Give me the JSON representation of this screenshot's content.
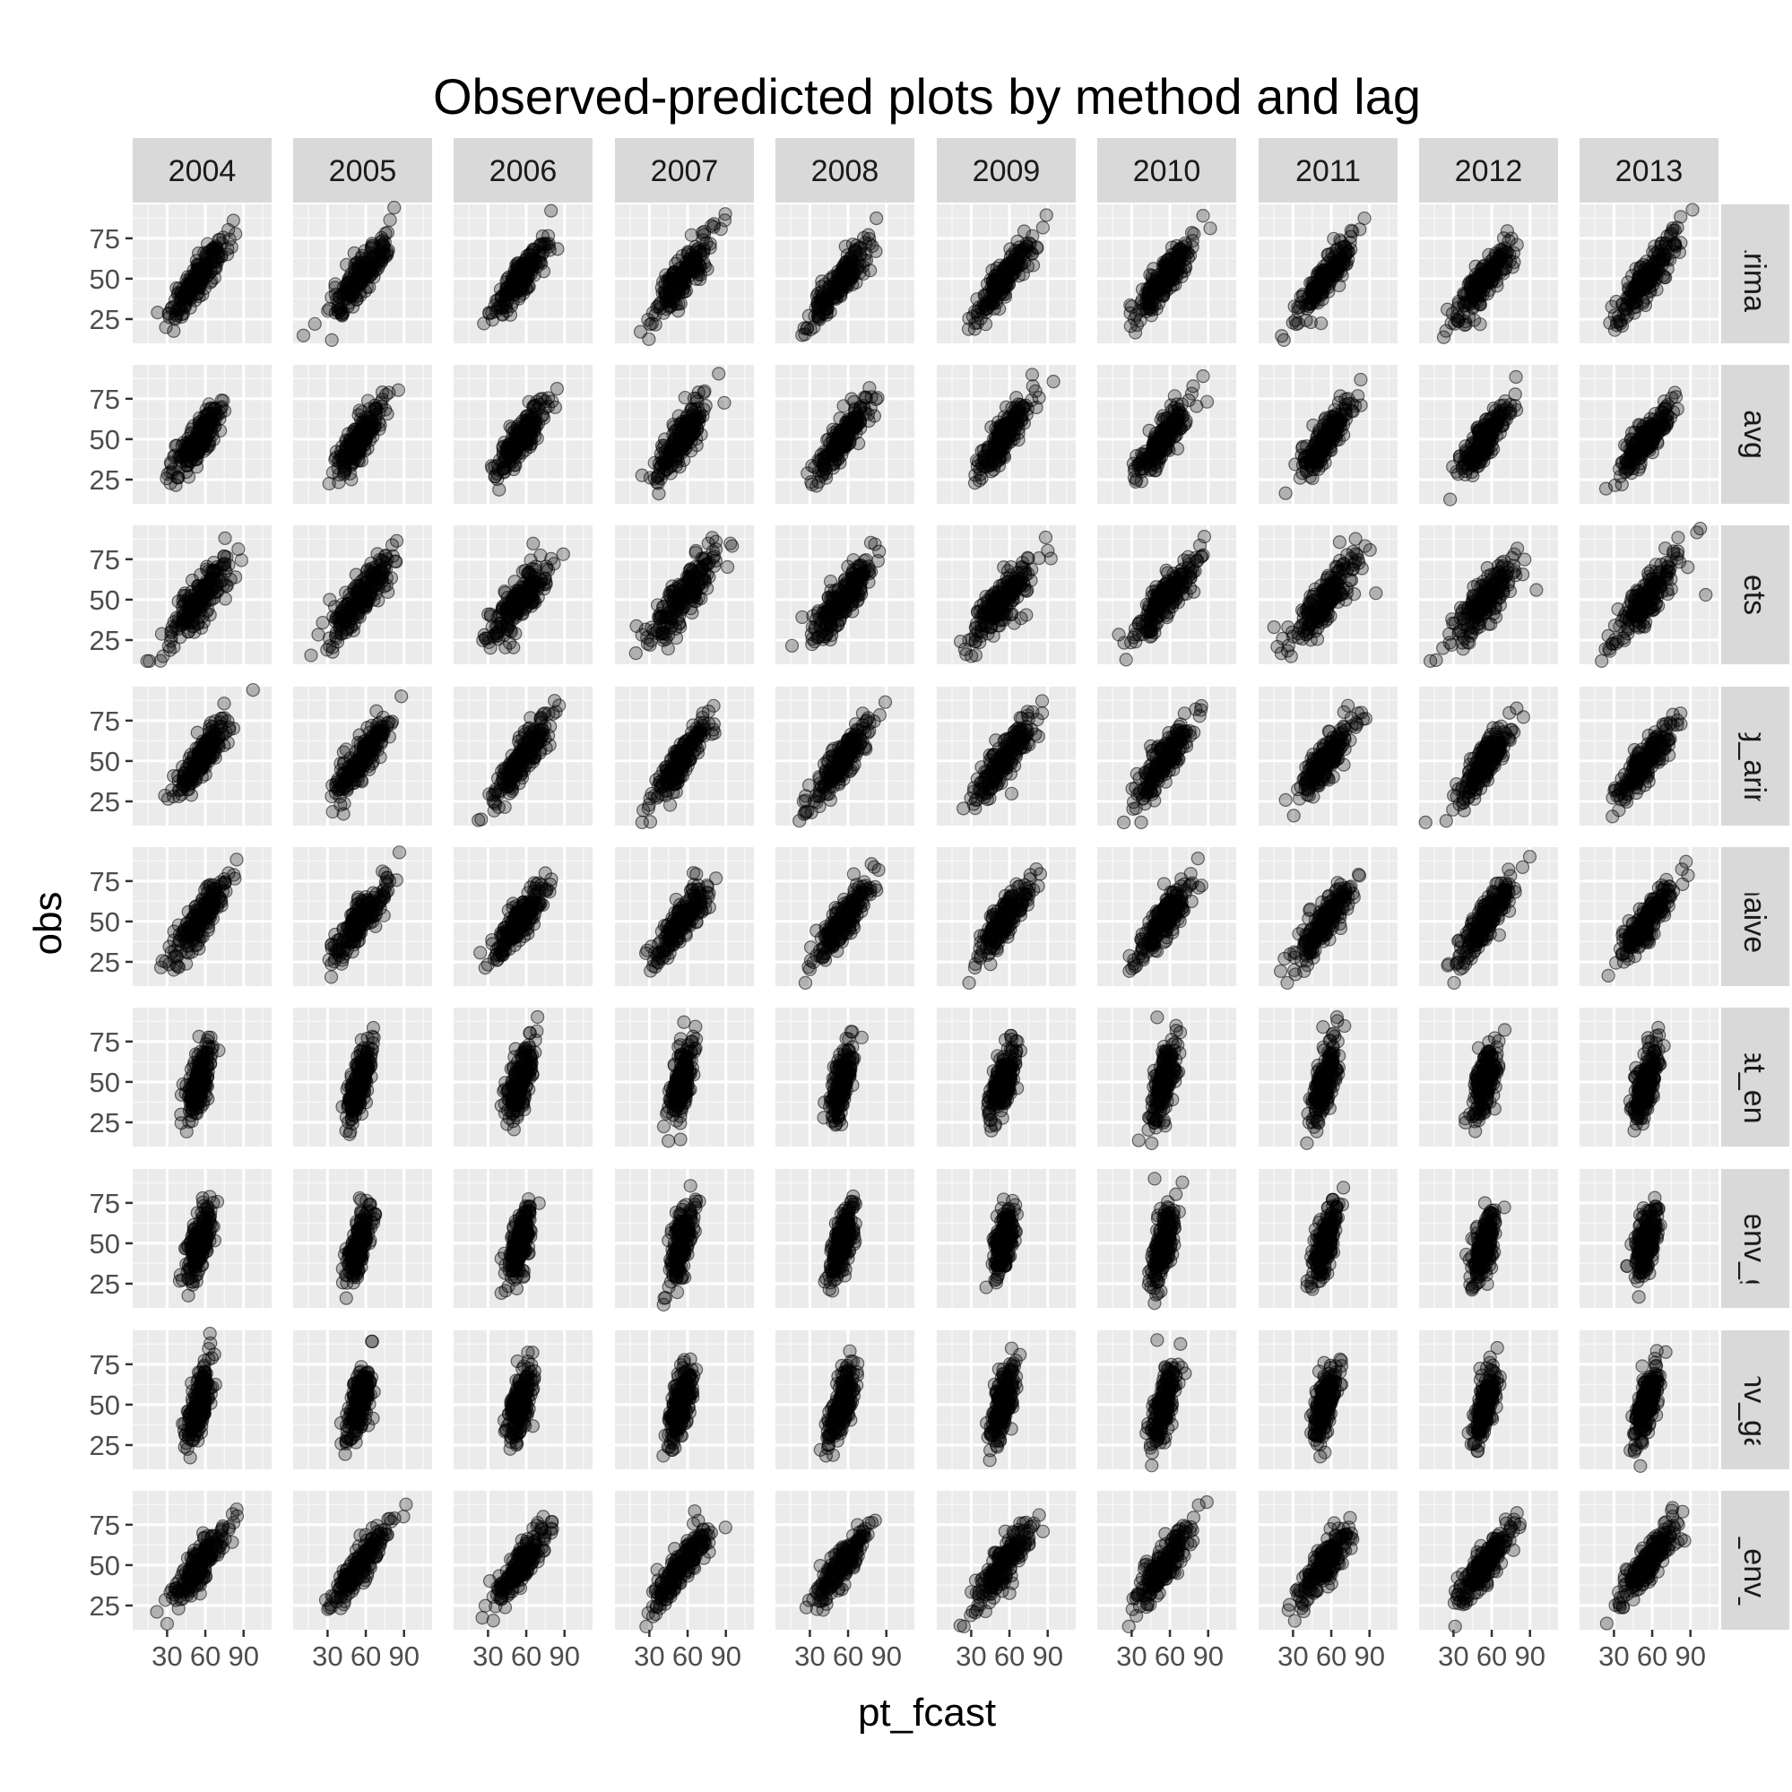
{
  "chart_data": {
    "type": "scatter",
    "title": "Observed-predicted plots by method and lag",
    "xlabel": "pt_fcast",
    "ylabel": "obs",
    "facet_columns": [
      "2004",
      "2005",
      "2006",
      "2007",
      "2008",
      "2009",
      "2010",
      "2011",
      "2012",
      "2013"
    ],
    "facet_rows": [
      "arima",
      "avg",
      "ets",
      "exog_arima",
      "naive",
      "spat_env",
      "spat_env_gam",
      "spat_env_gam_ln",
      "spat_env_lm"
    ],
    "x_ticks": [
      30,
      60,
      90
    ],
    "x_tick_labels": [
      "30",
      "60",
      "90"
    ],
    "y_ticks": [
      25,
      50,
      75
    ],
    "y_tick_labels": [
      "25",
      "50",
      "75"
    ],
    "xlim": [
      3,
      112
    ],
    "ylim": [
      10,
      96
    ],
    "grid": true,
    "point_color": "#000000",
    "point_alpha": 0.25,
    "panel_background": "#ebebeb",
    "strip_background": "#d9d9d9",
    "n_points_per_panel": 200,
    "row_fit": {
      "arima": {
        "slope": 1.0,
        "x_spread": 11,
        "noise": 6
      },
      "avg": {
        "slope": 1.0,
        "x_spread": 10,
        "noise": 6
      },
      "ets": {
        "slope": 0.9,
        "x_spread": 13,
        "noise": 7
      },
      "exog_arima": {
        "slope": 1.0,
        "x_spread": 11,
        "noise": 6
      },
      "naive": {
        "slope": 1.0,
        "x_spread": 11,
        "noise": 6
      },
      "spat_env": {
        "slope": 1.6,
        "x_spread": 5,
        "noise": 9
      },
      "spat_env_gam": {
        "slope": 1.6,
        "x_spread": 5,
        "noise": 9
      },
      "spat_env_gam_ln": {
        "slope": 1.6,
        "x_spread": 5,
        "noise": 9
      },
      "spat_env_lm": {
        "slope": 1.0,
        "x_spread": 11,
        "noise": 6
      }
    },
    "notable_points": [
      {
        "row": "ets",
        "col": "2011",
        "x": 95,
        "y": 54
      },
      {
        "row": "ets",
        "col": "2012",
        "x": 95,
        "y": 56
      },
      {
        "row": "ets",
        "col": "2013",
        "x": 102,
        "y": 53
      },
      {
        "row": "arima",
        "col": "2004",
        "x": 82,
        "y": 86
      },
      {
        "row": "arima",
        "col": "2010",
        "x": 86,
        "y": 89
      },
      {
        "row": "avg",
        "col": "2010",
        "x": 86,
        "y": 89
      },
      {
        "row": "ets",
        "col": "2010",
        "x": 87,
        "y": 89
      },
      {
        "row": "naive",
        "col": "2010",
        "x": 82,
        "y": 89
      },
      {
        "row": "spat_env_lm",
        "col": "2010",
        "x": 89,
        "y": 89
      },
      {
        "row": "spat_env",
        "col": "2010",
        "x": 50,
        "y": 90
      },
      {
        "row": "spat_env_gam",
        "col": "2010",
        "x": 48,
        "y": 90
      },
      {
        "row": "spat_env_gam_ln",
        "col": "2010",
        "x": 50,
        "y": 90
      }
    ]
  }
}
